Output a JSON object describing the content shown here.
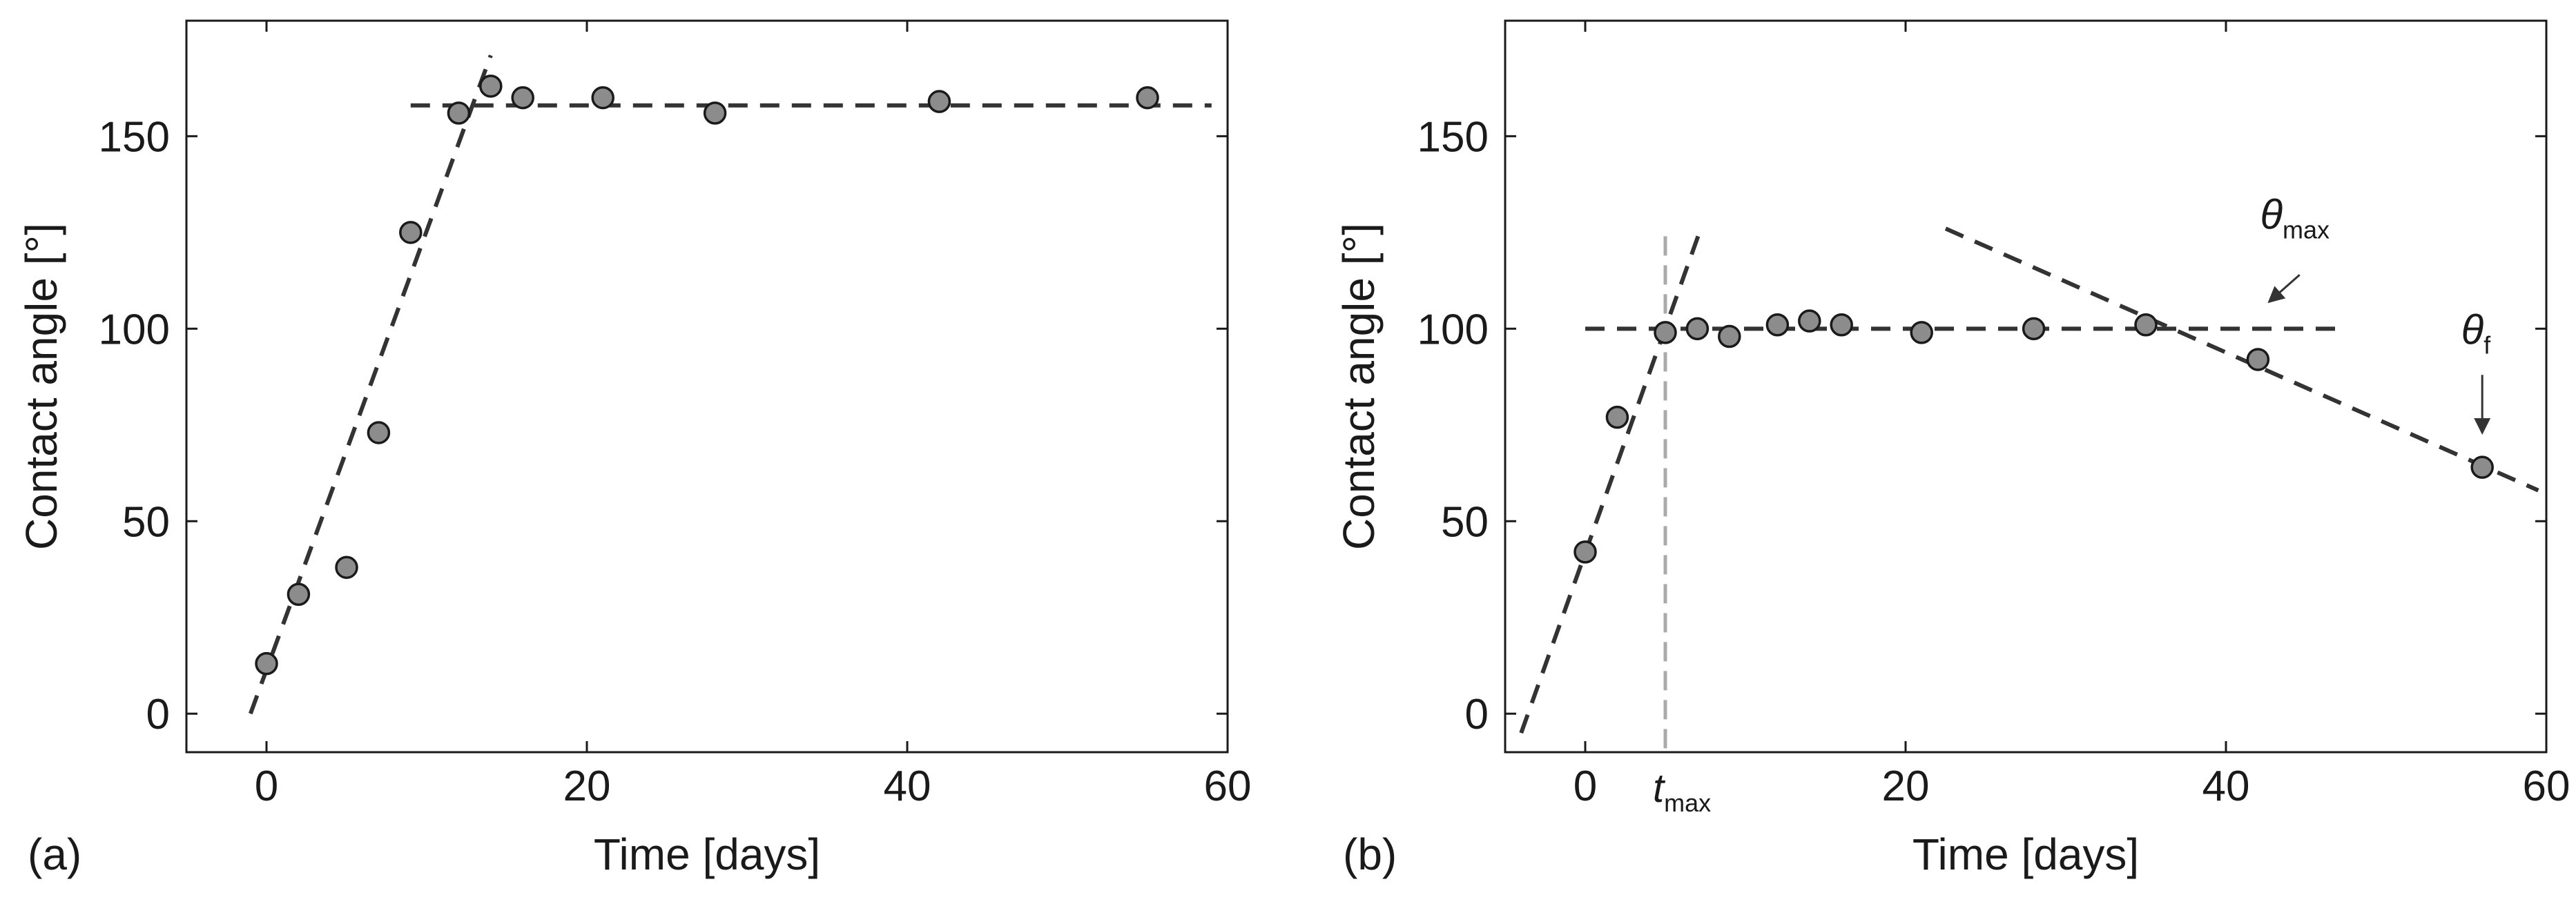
{
  "chart_data": [
    {
      "type": "scatter",
      "panel_label": "(a)",
      "xlabel": "Time [days]",
      "ylabel": "Contact angle [°]",
      "xlim": [
        -5,
        60
      ],
      "ylim": [
        -10,
        180
      ],
      "xticks": [
        0,
        20,
        40,
        60
      ],
      "yticks": [
        0,
        50,
        100,
        150
      ],
      "grid": false,
      "points": [
        {
          "x": 0,
          "y": 13
        },
        {
          "x": 2,
          "y": 31
        },
        {
          "x": 5,
          "y": 38
        },
        {
          "x": 7,
          "y": 73
        },
        {
          "x": 9,
          "y": 125
        },
        {
          "x": 12,
          "y": 156
        },
        {
          "x": 14,
          "y": 163
        },
        {
          "x": 16,
          "y": 160
        },
        {
          "x": 21,
          "y": 160
        },
        {
          "x": 28,
          "y": 156
        },
        {
          "x": 42,
          "y": 159
        },
        {
          "x": 55,
          "y": 160
        }
      ],
      "fit_lines": [
        {
          "x": [
            -1,
            14
          ],
          "y": [
            0,
            171
          ]
        },
        {
          "x": 9,
          "x2": 59,
          "y": [
            158,
            158
          ]
        }
      ],
      "vertical_markers": [],
      "annotations": []
    },
    {
      "type": "scatter",
      "panel_label": "(b)",
      "xlabel": "Time [days]",
      "ylabel": "Contact angle [°]",
      "xlim": [
        -5,
        60
      ],
      "ylim": [
        -10,
        180
      ],
      "xticks": [
        0,
        20,
        40,
        60
      ],
      "yticks": [
        0,
        50,
        100,
        150
      ],
      "grid": false,
      "points": [
        {
          "x": 0,
          "y": 42
        },
        {
          "x": 2,
          "y": 77
        },
        {
          "x": 5,
          "y": 99
        },
        {
          "x": 7,
          "y": 100
        },
        {
          "x": 9,
          "y": 98
        },
        {
          "x": 12,
          "y": 101
        },
        {
          "x": 14,
          "y": 102
        },
        {
          "x": 16,
          "y": 101
        },
        {
          "x": 21,
          "y": 99
        },
        {
          "x": 28,
          "y": 100
        },
        {
          "x": 35,
          "y": 101
        },
        {
          "x": 42,
          "y": 92
        },
        {
          "x": 56,
          "y": 64
        }
      ],
      "fit_lines": [
        {
          "x": [
            -4,
            7.3
          ],
          "y": [
            -5,
            127
          ]
        },
        {
          "x": [
            0,
            47
          ],
          "y": [
            100,
            100
          ]
        },
        {
          "x": [
            22.5,
            59.5
          ],
          "y": [
            126,
            58
          ]
        }
      ],
      "vertical_markers": [
        {
          "x": 5,
          "y_top": 124,
          "label_main": "t",
          "label_sub": "max"
        }
      ],
      "annotations": [
        {
          "symbol": "θ",
          "sub": "max",
          "text_x": 44.3,
          "text_y": 126,
          "arrow_from": [
            44.6,
            114
          ],
          "arrow_to": [
            42.7,
            107
          ]
        },
        {
          "symbol": "θ",
          "sub": "f",
          "text_x": 55.6,
          "text_y": 96,
          "arrow_from": [
            56,
            88
          ],
          "arrow_to": [
            56,
            73
          ]
        }
      ]
    }
  ]
}
